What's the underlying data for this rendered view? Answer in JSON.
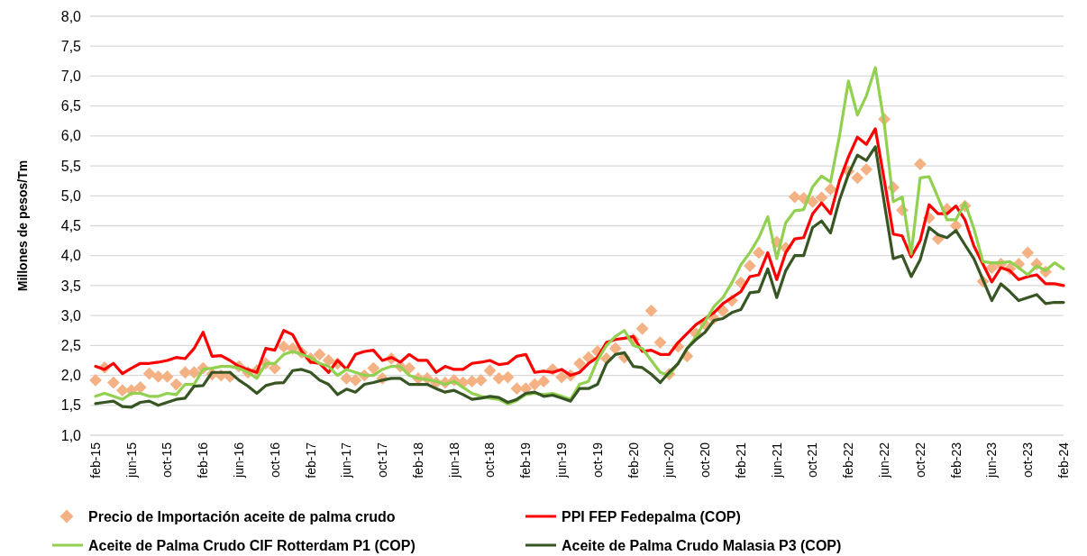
{
  "chart_data": {
    "type": "line",
    "ylabel": "Millones de pesos/Tm",
    "categories": [
      "feb-15",
      null,
      null,
      null,
      "jun-15",
      null,
      null,
      null,
      "oct-15",
      null,
      null,
      null,
      "feb-16",
      null,
      null,
      null,
      "jun-16",
      null,
      null,
      null,
      "oct-16",
      null,
      null,
      null,
      "feb-17",
      null,
      null,
      null,
      "jun-17",
      null,
      null,
      null,
      "oct-17",
      null,
      null,
      null,
      "feb-18",
      null,
      null,
      null,
      "jun-18",
      null,
      null,
      null,
      "oct-18",
      null,
      null,
      null,
      "feb-19",
      null,
      null,
      null,
      "jun-19",
      null,
      null,
      null,
      "oct-19",
      null,
      null,
      null,
      "feb-20",
      null,
      null,
      null,
      "jun-20",
      null,
      null,
      null,
      "oct-20",
      null,
      null,
      null,
      "feb-21",
      null,
      null,
      null,
      "jun-21",
      null,
      null,
      null,
      "oct-21",
      null,
      null,
      null,
      "feb-22",
      null,
      null,
      null,
      "jun-22",
      null,
      null,
      null,
      "oct-22",
      null,
      null,
      null,
      "feb-23",
      null,
      null,
      null,
      "jun-23",
      null,
      null,
      null,
      "oct-23",
      null,
      null,
      null,
      "feb-24"
    ],
    "ylim": [
      1,
      8
    ],
    "yticks": [
      {
        "value": 1,
        "label": "1,0"
      },
      {
        "value": 1.5,
        "label": "1,5"
      },
      {
        "value": 2,
        "label": "2,0"
      },
      {
        "value": 2.5,
        "label": "2,5"
      },
      {
        "value": 3,
        "label": "3,0"
      },
      {
        "value": 3.5,
        "label": "3,5"
      },
      {
        "value": 4,
        "label": "4,0"
      },
      {
        "value": 4.5,
        "label": "4,5"
      },
      {
        "value": 5,
        "label": "5,0"
      },
      {
        "value": 5.5,
        "label": "5,5"
      },
      {
        "value": 6,
        "label": "6,0"
      },
      {
        "value": 6.5,
        "label": "6,5"
      },
      {
        "value": 7,
        "label": "7,0"
      },
      {
        "value": 7.5,
        "label": "7,5"
      },
      {
        "value": 8,
        "label": "8,0"
      }
    ],
    "grid": "y",
    "legend": "bottom",
    "series": [
      {
        "name": "Precio de Importación aceite de palma crudo",
        "type": "scatter",
        "marker": "diamond",
        "color": "#f4b183",
        "values": [
          1.92,
          2.13,
          1.88,
          1.75,
          1.75,
          1.8,
          2.03,
          1.98,
          1.98,
          1.85,
          2.05,
          2.05,
          2.12,
          2.02,
          2.0,
          1.98,
          2.15,
          2.05,
          2.08,
          2.2,
          2.12,
          2.48,
          2.45,
          2.38,
          2.28,
          2.35,
          2.25,
          2.2,
          1.95,
          1.92,
          2.0,
          2.12,
          1.95,
          2.28,
          2.15,
          2.12,
          1.95,
          1.95,
          1.88,
          1.88,
          1.92,
          1.88,
          1.9,
          1.92,
          2.08,
          1.95,
          1.97,
          1.78,
          1.78,
          1.85,
          1.9,
          2.1,
          1.97,
          2.0,
          2.2,
          2.3,
          2.4,
          2.28,
          2.45,
          2.3,
          2.6,
          2.78,
          3.08,
          2.55,
          2.02,
          2.48,
          2.32,
          2.7,
          2.85,
          2.95,
          3.08,
          3.25,
          3.55,
          3.83,
          4.05,
          null,
          4.23,
          4.13,
          4.98,
          4.96,
          4.9,
          4.97,
          5.11,
          null,
          5.41,
          5.3,
          5.44,
          null,
          6.28,
          5.14,
          4.76,
          null,
          5.53,
          4.63,
          4.28,
          4.78,
          4.5,
          4.83,
          null,
          3.57,
          3.8,
          3.86,
          3.78,
          3.86,
          4.05,
          3.86,
          3.73,
          null,
          null
        ]
      },
      {
        "name": "PPI FEP Fedepalma (COP)",
        "color": "#ff0000",
        "values": [
          2.15,
          2.1,
          2.2,
          2.03,
          2.12,
          2.2,
          2.2,
          2.22,
          2.25,
          2.3,
          2.28,
          2.45,
          2.72,
          2.32,
          2.33,
          2.25,
          2.15,
          2.1,
          2.05,
          2.45,
          2.42,
          2.75,
          2.68,
          2.4,
          2.22,
          2.2,
          2.05,
          2.25,
          2.1,
          2.35,
          2.4,
          2.42,
          2.25,
          2.3,
          2.22,
          2.35,
          2.25,
          2.25,
          2.05,
          2.15,
          2.1,
          2.1,
          2.2,
          2.22,
          2.25,
          2.18,
          2.2,
          2.32,
          2.35,
          2.05,
          2.07,
          2.05,
          2.1,
          2.0,
          2.05,
          2.2,
          2.3,
          2.55,
          2.6,
          2.62,
          2.65,
          2.4,
          2.42,
          2.35,
          2.35,
          2.55,
          2.7,
          2.85,
          2.95,
          3.05,
          3.2,
          3.3,
          3.4,
          3.65,
          3.68,
          4.05,
          3.6,
          4.05,
          4.28,
          4.3,
          4.7,
          4.88,
          4.7,
          5.25,
          5.65,
          5.98,
          5.86,
          6.12,
          5.26,
          4.36,
          4.33,
          3.98,
          4.25,
          4.85,
          4.7,
          4.7,
          4.83,
          4.6,
          4.16,
          3.86,
          3.56,
          3.8,
          3.75,
          3.6,
          3.65,
          3.68,
          3.53,
          3.53,
          3.5
        ]
      },
      {
        "name": "Aceite de Palma Crudo CIF Rotterdam P1 (COP)",
        "color": "#92d050",
        "values": [
          1.65,
          1.7,
          1.65,
          1.6,
          1.7,
          1.7,
          1.65,
          1.65,
          1.7,
          1.68,
          1.85,
          1.85,
          2.1,
          2.12,
          2.15,
          2.15,
          2.12,
          2.05,
          1.95,
          2.2,
          2.2,
          2.35,
          2.4,
          2.35,
          2.3,
          2.2,
          2.15,
          2.0,
          2.1,
          2.05,
          2.0,
          2.0,
          2.1,
          2.15,
          2.15,
          2.0,
          1.95,
          1.93,
          1.9,
          1.85,
          1.9,
          1.8,
          1.7,
          1.65,
          1.62,
          1.6,
          1.52,
          1.58,
          1.68,
          1.7,
          1.68,
          1.7,
          1.65,
          1.6,
          1.85,
          1.9,
          2.25,
          2.5,
          2.65,
          2.75,
          2.5,
          2.45,
          2.25,
          2.05,
          2.0,
          2.2,
          2.45,
          2.65,
          2.9,
          3.15,
          3.3,
          3.55,
          3.85,
          4.05,
          4.3,
          4.65,
          3.95,
          4.55,
          4.75,
          4.77,
          5.15,
          5.33,
          5.23,
          6.0,
          6.92,
          6.35,
          6.67,
          7.14,
          6.2,
          4.9,
          4.98,
          4.03,
          5.3,
          5.32,
          4.97,
          4.6,
          4.6,
          4.88,
          4.45,
          3.9,
          3.88,
          3.88,
          3.9,
          3.8,
          3.68,
          3.83,
          3.75,
          3.88,
          3.78
        ]
      },
      {
        "name": "Aceite de Palma Crudo Malasia P3 (COP)",
        "color": "#375623",
        "values": [
          1.53,
          1.55,
          1.57,
          1.48,
          1.47,
          1.55,
          1.57,
          1.5,
          1.55,
          1.6,
          1.62,
          1.82,
          1.83,
          2.05,
          2.05,
          2.05,
          1.92,
          1.82,
          1.7,
          1.83,
          1.87,
          1.88,
          2.08,
          2.1,
          2.05,
          1.92,
          1.85,
          1.68,
          1.77,
          1.72,
          1.85,
          1.88,
          1.92,
          1.95,
          1.95,
          1.85,
          1.85,
          1.85,
          1.78,
          1.72,
          1.75,
          1.68,
          1.6,
          1.62,
          1.65,
          1.63,
          1.55,
          1.6,
          1.7,
          1.72,
          1.65,
          1.67,
          1.62,
          1.57,
          1.78,
          1.78,
          1.85,
          2.2,
          2.35,
          2.38,
          2.15,
          2.13,
          2.02,
          1.88,
          2.05,
          2.2,
          2.45,
          2.6,
          2.72,
          2.92,
          2.95,
          3.05,
          3.1,
          3.38,
          3.4,
          3.78,
          3.3,
          3.75,
          4.0,
          4.0,
          4.47,
          4.58,
          4.38,
          4.93,
          5.36,
          5.68,
          5.59,
          5.82,
          4.88,
          3.95,
          4.0,
          3.65,
          3.93,
          4.47,
          4.35,
          4.3,
          4.42,
          4.18,
          3.95,
          3.6,
          3.25,
          3.53,
          3.4,
          3.25,
          3.3,
          3.35,
          3.2,
          3.22,
          3.22
        ]
      }
    ]
  }
}
